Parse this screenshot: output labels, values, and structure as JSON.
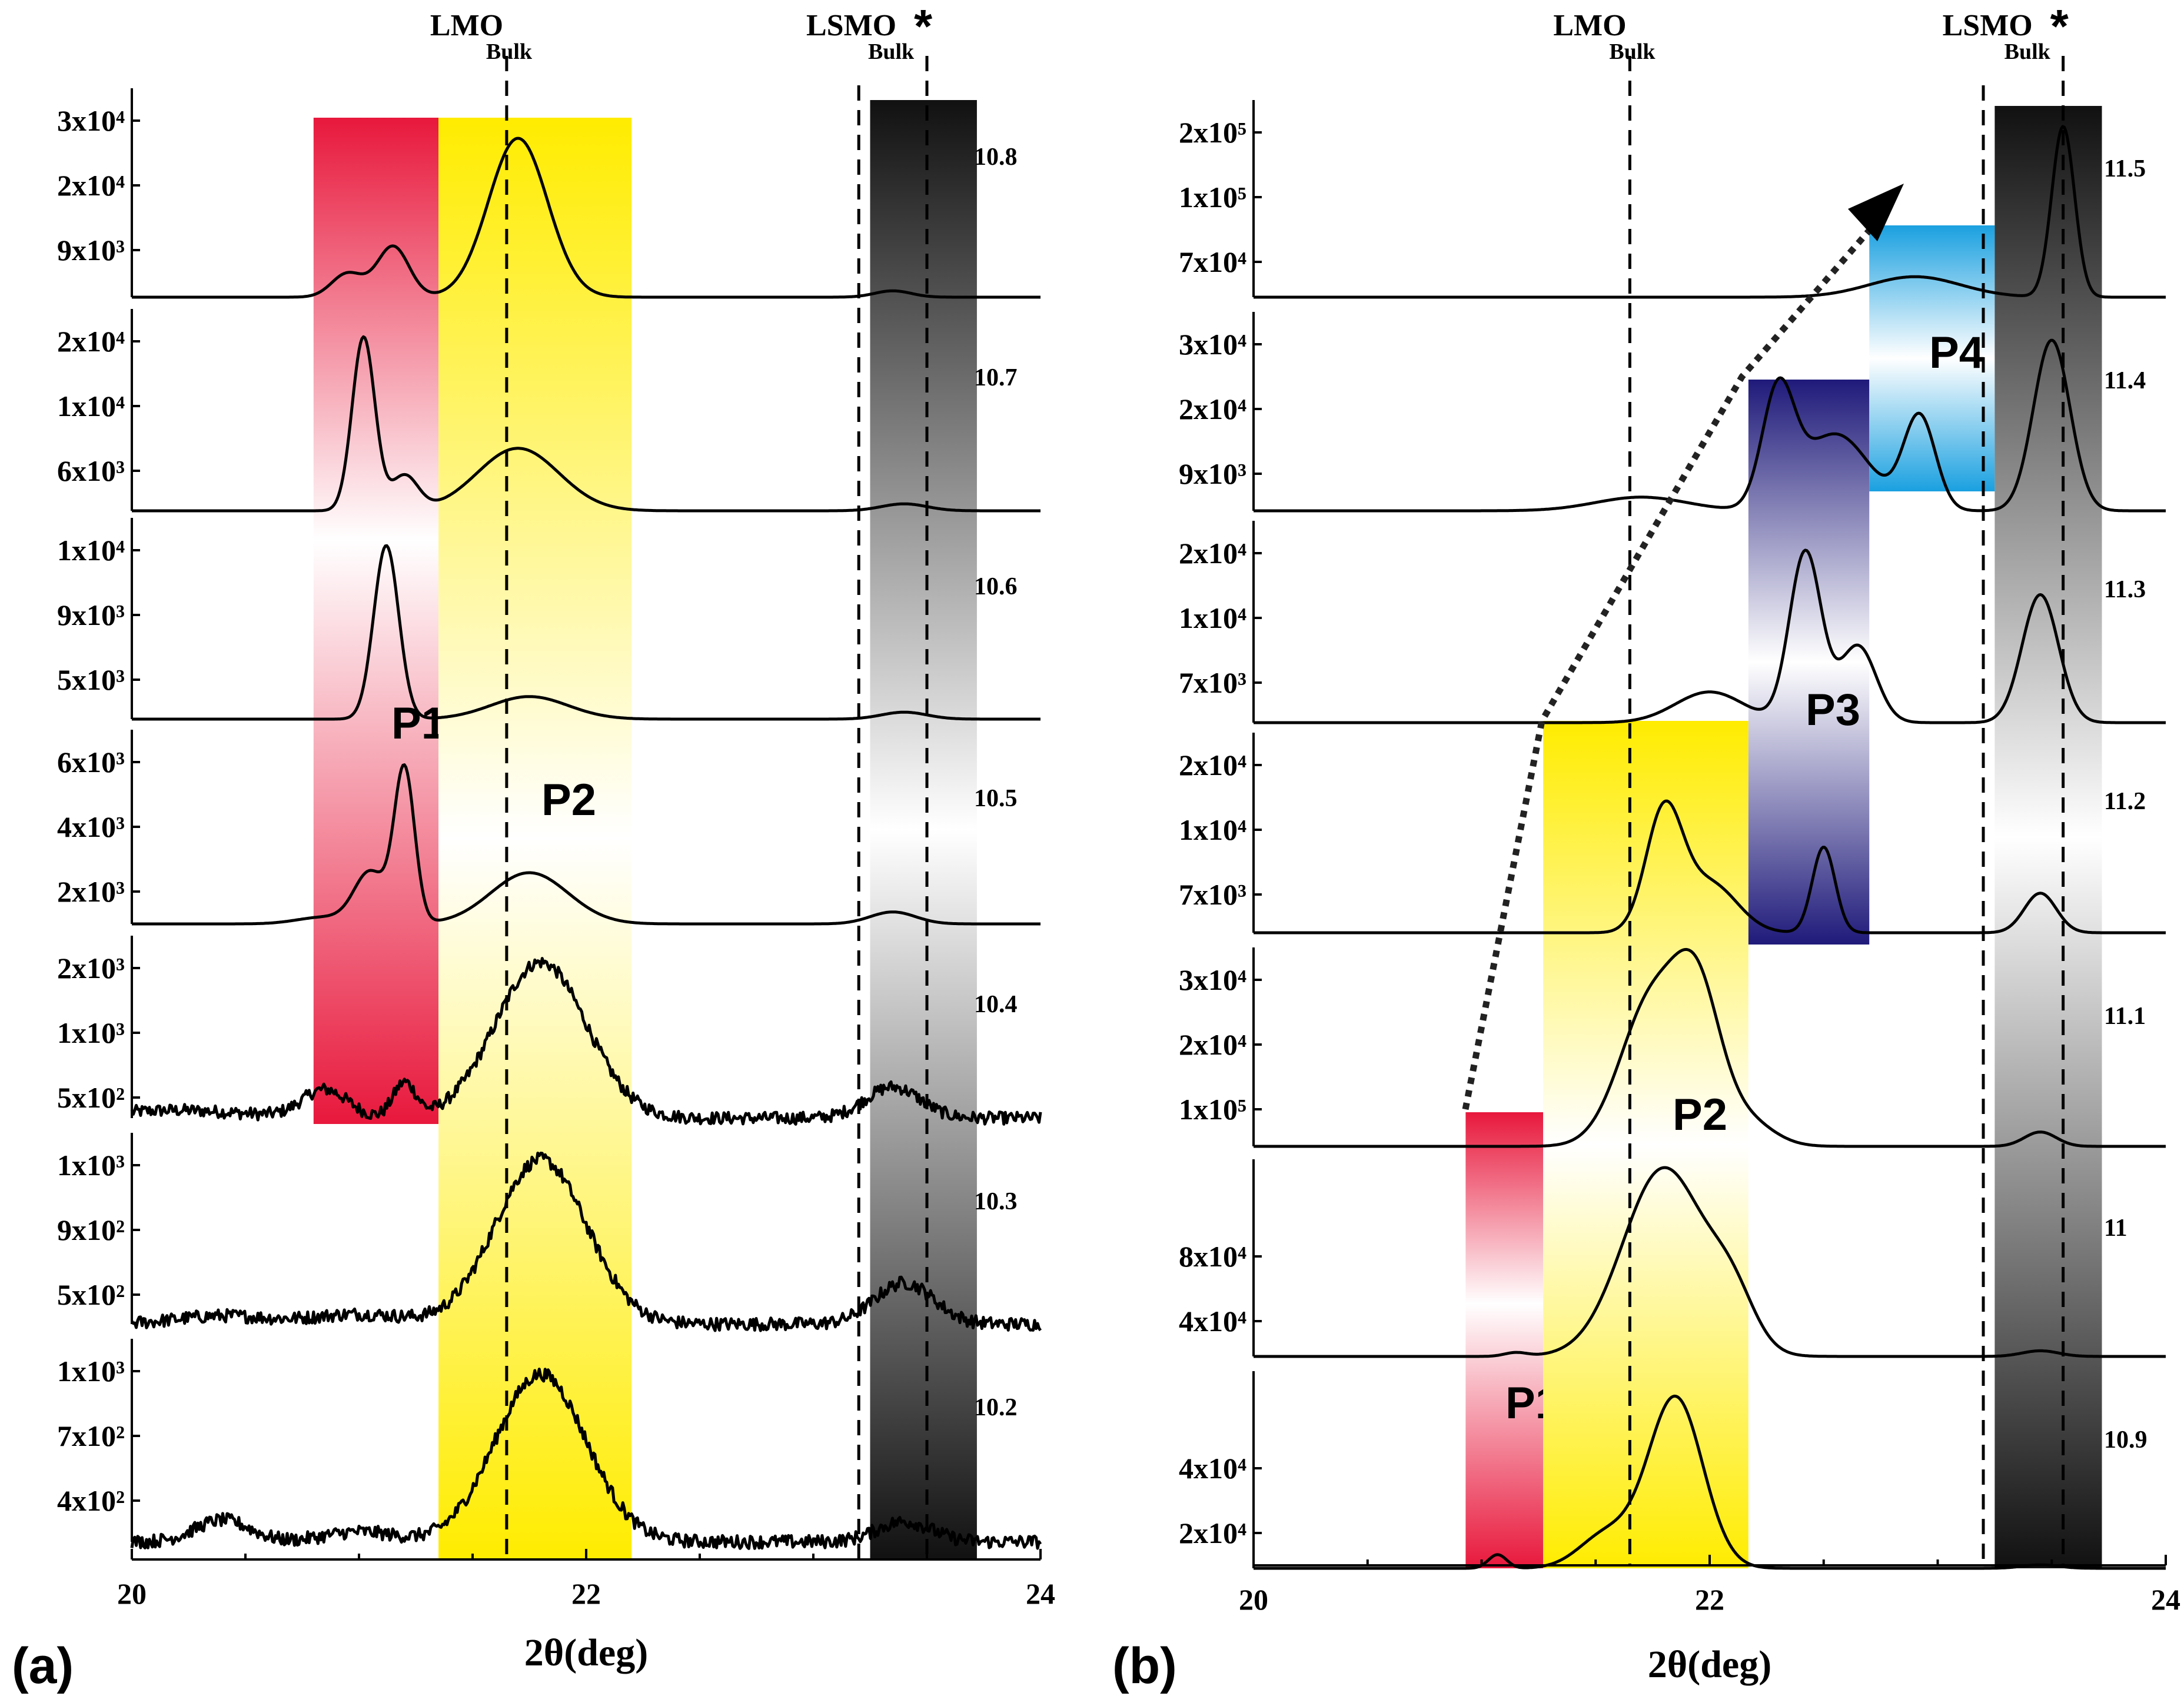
{
  "chart_data": [
    {
      "panel": "(a)",
      "type": "line",
      "xlabel": "2θ(deg)",
      "xlim": [
        20,
        24
      ],
      "xticks": [
        20,
        22,
        24
      ],
      "references": [
        {
          "name": "LMO",
          "sub": "Bulk",
          "x": 21.65,
          "star": ""
        },
        {
          "name": "LSMO",
          "sub": "Bulk",
          "x": 23.5,
          "star": "*",
          "extra_dashed_x": 23.2
        }
      ],
      "bands": [
        {
          "label": "P1",
          "x0": 20.8,
          "x1": 21.35,
          "color": "#e8183c",
          "gradient": "red"
        },
        {
          "label": "P2",
          "x0": 21.35,
          "x1": 22.2,
          "color": "#ffec00",
          "gradient": "yellow"
        },
        {
          "label": "",
          "x0": 23.25,
          "x1": 23.72,
          "color": "#000000",
          "gradient": "gray"
        }
      ],
      "series": [
        {
          "name": "10.8",
          "yticks": [
            "3x10⁴",
            "2x10⁴",
            "9x10³"
          ],
          "noise": 0,
          "peaks": [
            [
              20.95,
              0.15,
              0.07
            ],
            [
              21.15,
              0.32,
              0.07
            ],
            [
              21.7,
              1.0,
              0.13
            ],
            [
              23.35,
              0.04,
              0.08
            ]
          ]
        },
        {
          "name": "10.7",
          "yticks": [
            "2x10⁴",
            "1x10⁴",
            "6x10³"
          ],
          "noise": 0,
          "peaks": [
            [
              21.02,
              1.0,
              0.05
            ],
            [
              21.2,
              0.2,
              0.06
            ],
            [
              21.7,
              0.36,
              0.18
            ],
            [
              23.4,
              0.04,
              0.1
            ]
          ]
        },
        {
          "name": "10.6",
          "yticks": [
            "1x10⁴",
            "9x10³",
            "5x10³"
          ],
          "noise": 0,
          "peaks": [
            [
              21.12,
              1.0,
              0.055
            ],
            [
              21.75,
              0.13,
              0.17
            ],
            [
              23.4,
              0.04,
              0.1
            ]
          ]
        },
        {
          "name": "10.5",
          "yticks": [
            "6x10³",
            "4x10³",
            "2x10³"
          ],
          "noise": 0,
          "peaks": [
            [
              20.85,
              0.04,
              0.12
            ],
            [
              21.05,
              0.3,
              0.07
            ],
            [
              21.2,
              0.9,
              0.045
            ],
            [
              21.75,
              0.3,
              0.17
            ],
            [
              23.35,
              0.07,
              0.1
            ]
          ]
        },
        {
          "name": "10.4",
          "yticks": [
            "2x10³",
            "1x10³",
            "5x10²"
          ],
          "noise": 0.04,
          "peaks": [
            [
              20.2,
              0.05,
              0.3
            ],
            [
              20.85,
              0.18,
              0.1
            ],
            [
              21.2,
              0.22,
              0.05
            ],
            [
              21.8,
              1.0,
              0.2
            ],
            [
              23.35,
              0.2,
              0.12
            ]
          ]
        },
        {
          "name": "10.3",
          "yticks": [
            "1x10³",
            "9x10²",
            "5x10²"
          ],
          "noise": 0.04,
          "peaks": [
            [
              20.4,
              0.05,
              0.2
            ],
            [
              21.0,
              0.06,
              0.2
            ],
            [
              21.8,
              1.0,
              0.2
            ],
            [
              23.4,
              0.25,
              0.13
            ]
          ]
        },
        {
          "name": "10.2",
          "yticks": [
            "1x10³",
            "7x10²",
            "4x10²"
          ],
          "noise": 0.04,
          "peaks": [
            [
              20.4,
              0.13,
              0.12
            ],
            [
              21.0,
              0.06,
              0.15
            ],
            [
              21.8,
              1.0,
              0.2
            ],
            [
              23.4,
              0.12,
              0.12
            ]
          ]
        }
      ]
    },
    {
      "panel": "(b)",
      "type": "line",
      "xlabel": "2θ(deg)",
      "xlim": [
        20,
        24
      ],
      "xticks": [
        20,
        22,
        24
      ],
      "references": [
        {
          "name": "LMO",
          "sub": "Bulk",
          "x": 21.65,
          "star": ""
        },
        {
          "name": "LSMO",
          "sub": "Bulk",
          "x": 23.55,
          "star": "*",
          "extra_dashed_x": 23.2
        }
      ],
      "bands": [
        {
          "label": "P1",
          "x0": 20.93,
          "x1": 21.27,
          "color": "#e8183c",
          "gradient": "red"
        },
        {
          "label": "P2",
          "x0": 21.27,
          "x1": 22.17,
          "color": "#ffec00",
          "gradient": "yellow"
        },
        {
          "label": "P3",
          "x0": 22.17,
          "x1": 22.7,
          "color": "#1f1a7a",
          "gradient": "blue"
        },
        {
          "label": "P4",
          "x0": 22.7,
          "x1": 23.25,
          "color": "#1aa0e0",
          "gradient": "cyan"
        },
        {
          "label": "",
          "x0": 23.25,
          "x1": 23.72,
          "color": "#000000",
          "gradient": "gray"
        }
      ],
      "series": [
        {
          "name": "11.5",
          "yticks": [
            "2x10⁵",
            "1x10⁵",
            "7x10⁴"
          ],
          "noise": 0,
          "peaks": [
            [
              22.9,
              0.12,
              0.2
            ],
            [
              23.55,
              1.0,
              0.05
            ]
          ]
        },
        {
          "name": "11.4",
          "yticks": [
            "3x10⁴",
            "2x10⁴",
            "9x10³"
          ],
          "noise": 0,
          "peaks": [
            [
              21.7,
              0.08,
              0.2
            ],
            [
              22.3,
              0.66,
              0.07
            ],
            [
              22.55,
              0.45,
              0.15
            ],
            [
              22.92,
              0.55,
              0.07
            ],
            [
              23.5,
              1.0,
              0.08
            ]
          ]
        },
        {
          "name": "11.3",
          "yticks": [
            "2x10⁴",
            "1x10⁴",
            "7x10³"
          ],
          "noise": 0,
          "peaks": [
            [
              22.0,
              0.18,
              0.15
            ],
            [
              22.42,
              1.0,
              0.07
            ],
            [
              22.65,
              0.45,
              0.08
            ],
            [
              23.45,
              0.75,
              0.08
            ]
          ]
        },
        {
          "name": "11.2",
          "yticks": [
            "2x10⁴",
            "1x10⁴",
            "7x10³"
          ],
          "noise": 0,
          "peaks": [
            [
              21.8,
              0.72,
              0.08
            ],
            [
              22.0,
              0.3,
              0.12
            ],
            [
              22.5,
              0.52,
              0.05
            ],
            [
              23.45,
              0.24,
              0.07
            ]
          ]
        },
        {
          "name": "11.1",
          "yticks": [
            "3x10⁴",
            "2x10⁴",
            "1x10⁵"
          ],
          "noise": 0,
          "peaks": [
            [
              21.75,
              0.82,
              0.14
            ],
            [
              21.95,
              0.7,
              0.1
            ],
            [
              22.15,
              0.15,
              0.12
            ],
            [
              23.45,
              0.08,
              0.07
            ]
          ]
        },
        {
          "name": "11",
          "yticks": [
            "8x10⁴",
            "4x10⁴"
          ],
          "noise": 0,
          "peaks": [
            [
              21.15,
              0.02,
              0.05
            ],
            [
              21.8,
              1.0,
              0.18
            ],
            [
              22.1,
              0.25,
              0.1
            ],
            [
              23.45,
              0.03,
              0.08
            ]
          ]
        },
        {
          "name": "10.9",
          "yticks": [
            "4x10⁴",
            "2x10⁴"
          ],
          "noise": 0,
          "peaks": [
            [
              21.07,
              0.08,
              0.04
            ],
            [
              21.55,
              0.2,
              0.12
            ],
            [
              21.85,
              1.0,
              0.12
            ],
            [
              23.45,
              0.02,
              0.08
            ]
          ]
        }
      ],
      "arrow": {
        "style": "dotted",
        "from": "P1",
        "to": "P4"
      }
    }
  ],
  "labels": {
    "panel_a": "(a)",
    "panel_b": "(b)"
  }
}
